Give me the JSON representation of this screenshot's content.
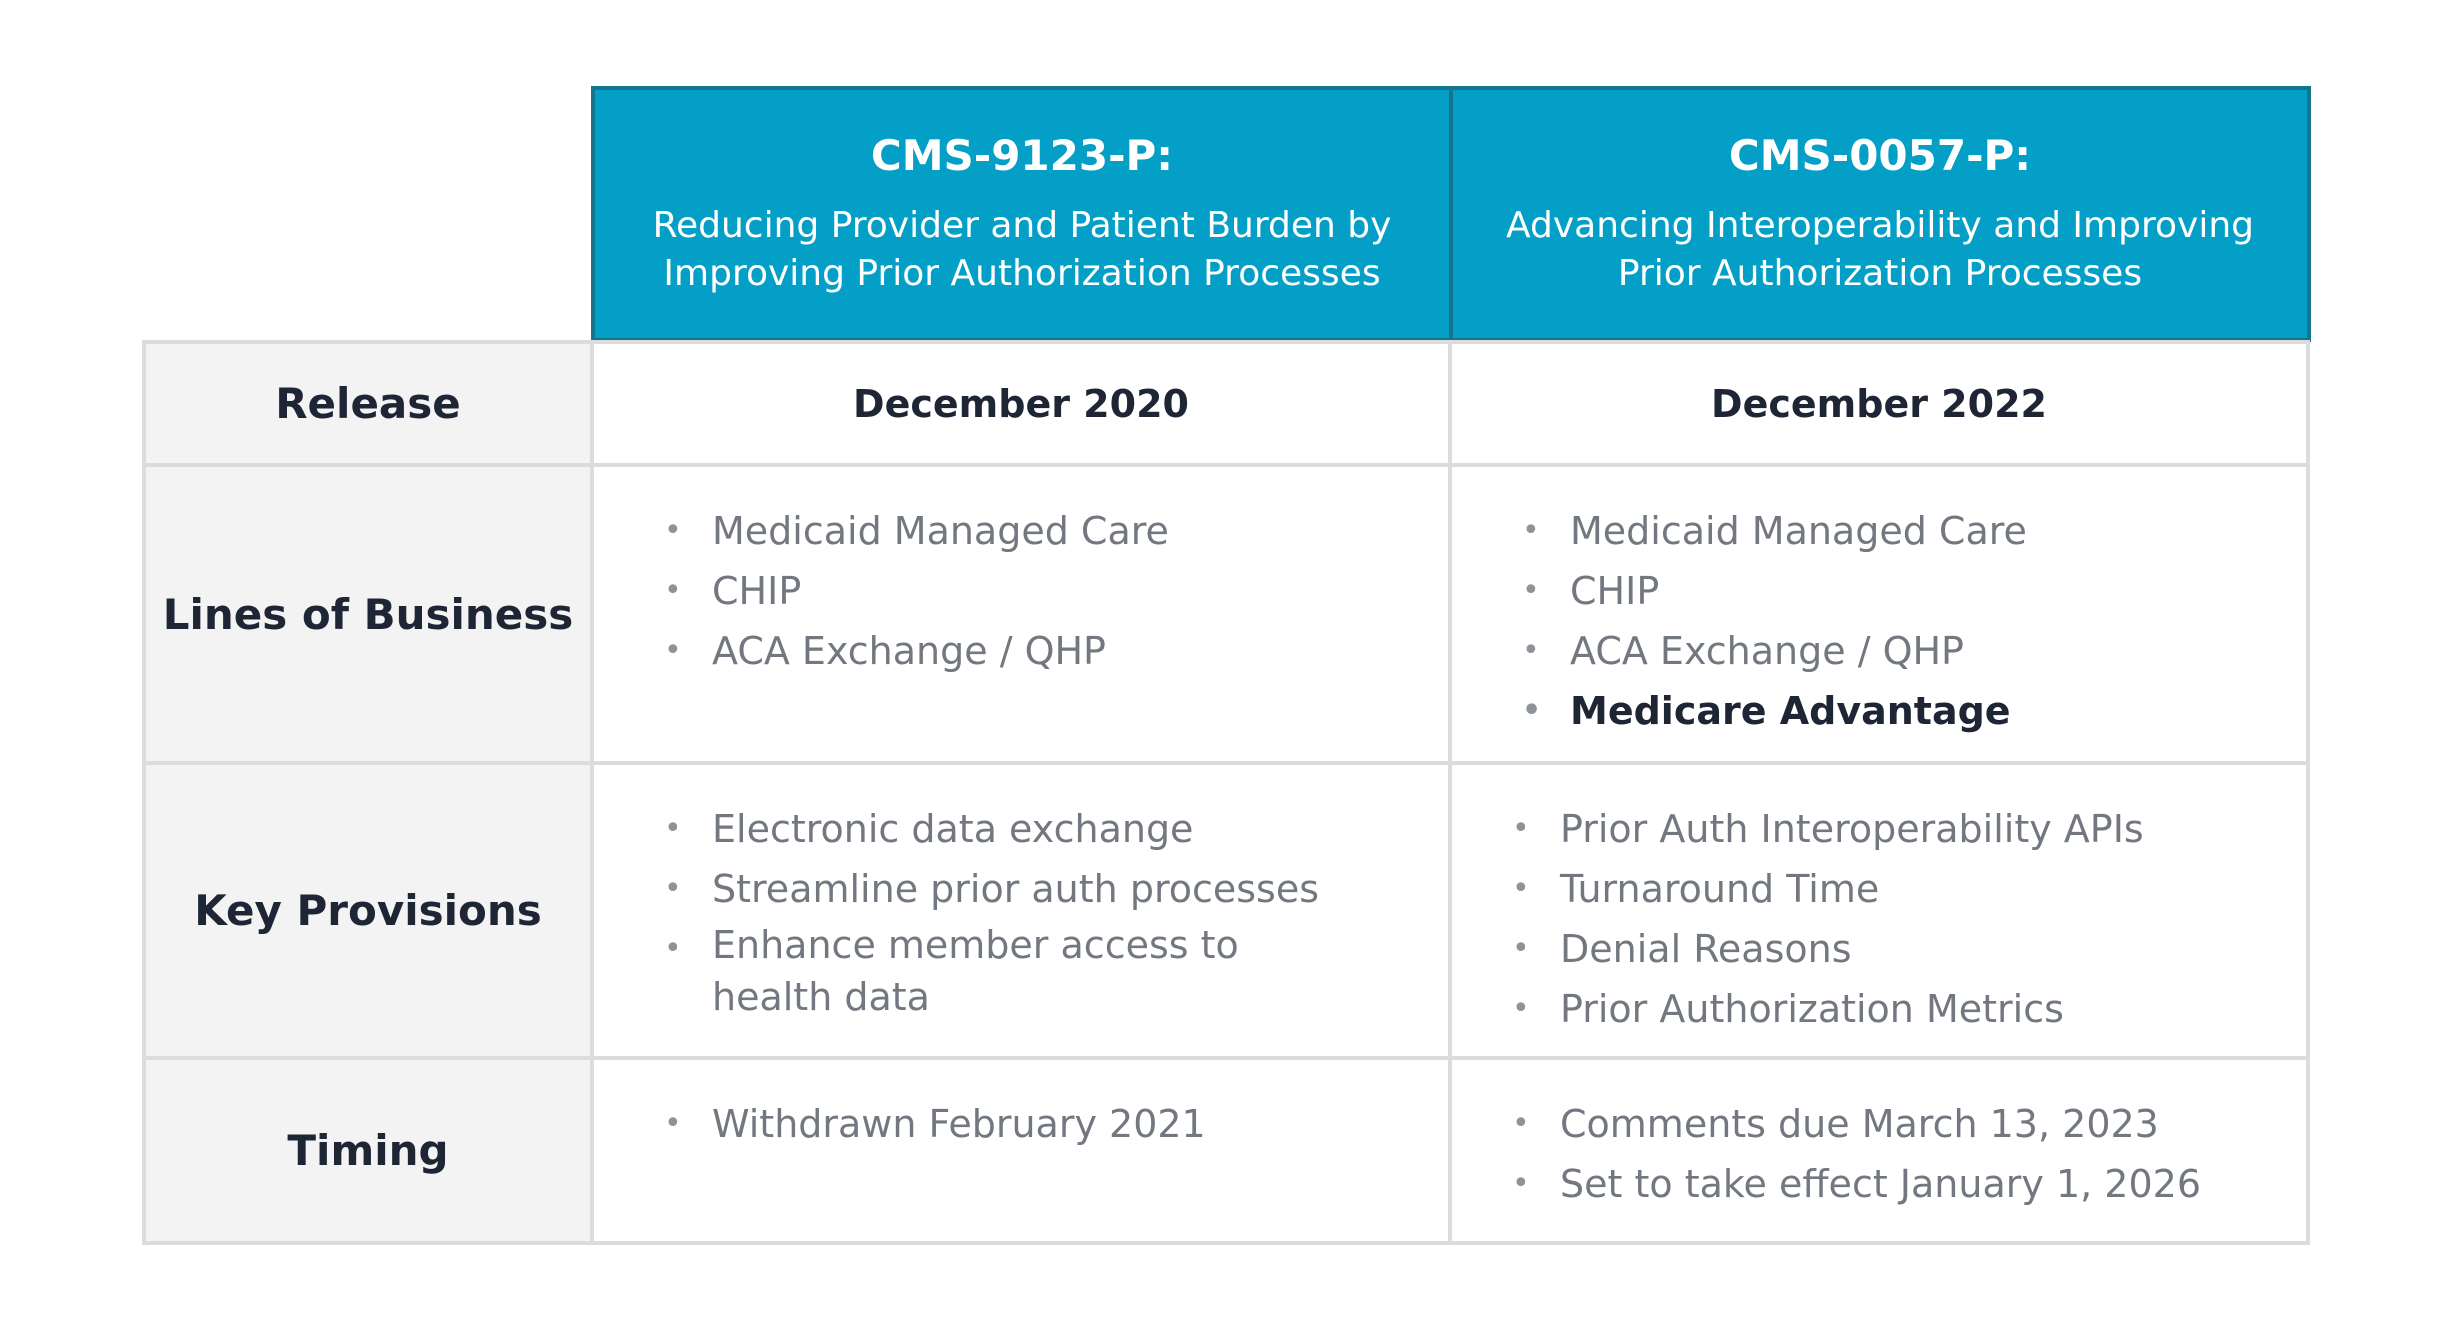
{
  "columns": [
    {
      "code": "CMS-9123-P:",
      "subtitle_lines": [
        "Reducing Provider and Patient Burden by",
        "Improving Prior Authorization Processes"
      ]
    },
    {
      "code": "CMS-0057-P:",
      "subtitle_lines": [
        "Advancing Interoperability and Improving",
        "Prior Authorization Processes"
      ]
    }
  ],
  "rows": {
    "release": {
      "label": "Release",
      "col1": "December 2020",
      "col2": "December 2022"
    },
    "lines_of_business": {
      "label": "Lines of Business",
      "col1": [
        "Medicaid Managed Care",
        "CHIP",
        "ACA Exchange / QHP"
      ],
      "col2": [
        "Medicaid Managed Care",
        "CHIP",
        "ACA Exchange / QHP",
        "Medicare Advantage"
      ]
    },
    "key_provisions": {
      "label": "Key Provisions",
      "col1": [
        "Electronic data exchange",
        "Streamline prior auth processes",
        "Enhance member access to",
        "health data"
      ],
      "col2": [
        "Prior Auth Interoperability APIs",
        "Turnaround Time",
        "Denial Reasons",
        "Prior Authorization Metrics"
      ]
    },
    "timing": {
      "label": "Timing",
      "col1": [
        "Withdrawn February 2021"
      ],
      "col2": [
        "Comments due March 13, 2023",
        "Set to take effect January 1, 2026"
      ]
    }
  },
  "colors": {
    "header_bg": "#049fc6",
    "header_border": "#15758c",
    "label_bg": "#f3f3f3",
    "grid_line": "#dcdcdc",
    "dark_text": "#1e2535",
    "muted_text": "#737880"
  },
  "bullet": "•"
}
